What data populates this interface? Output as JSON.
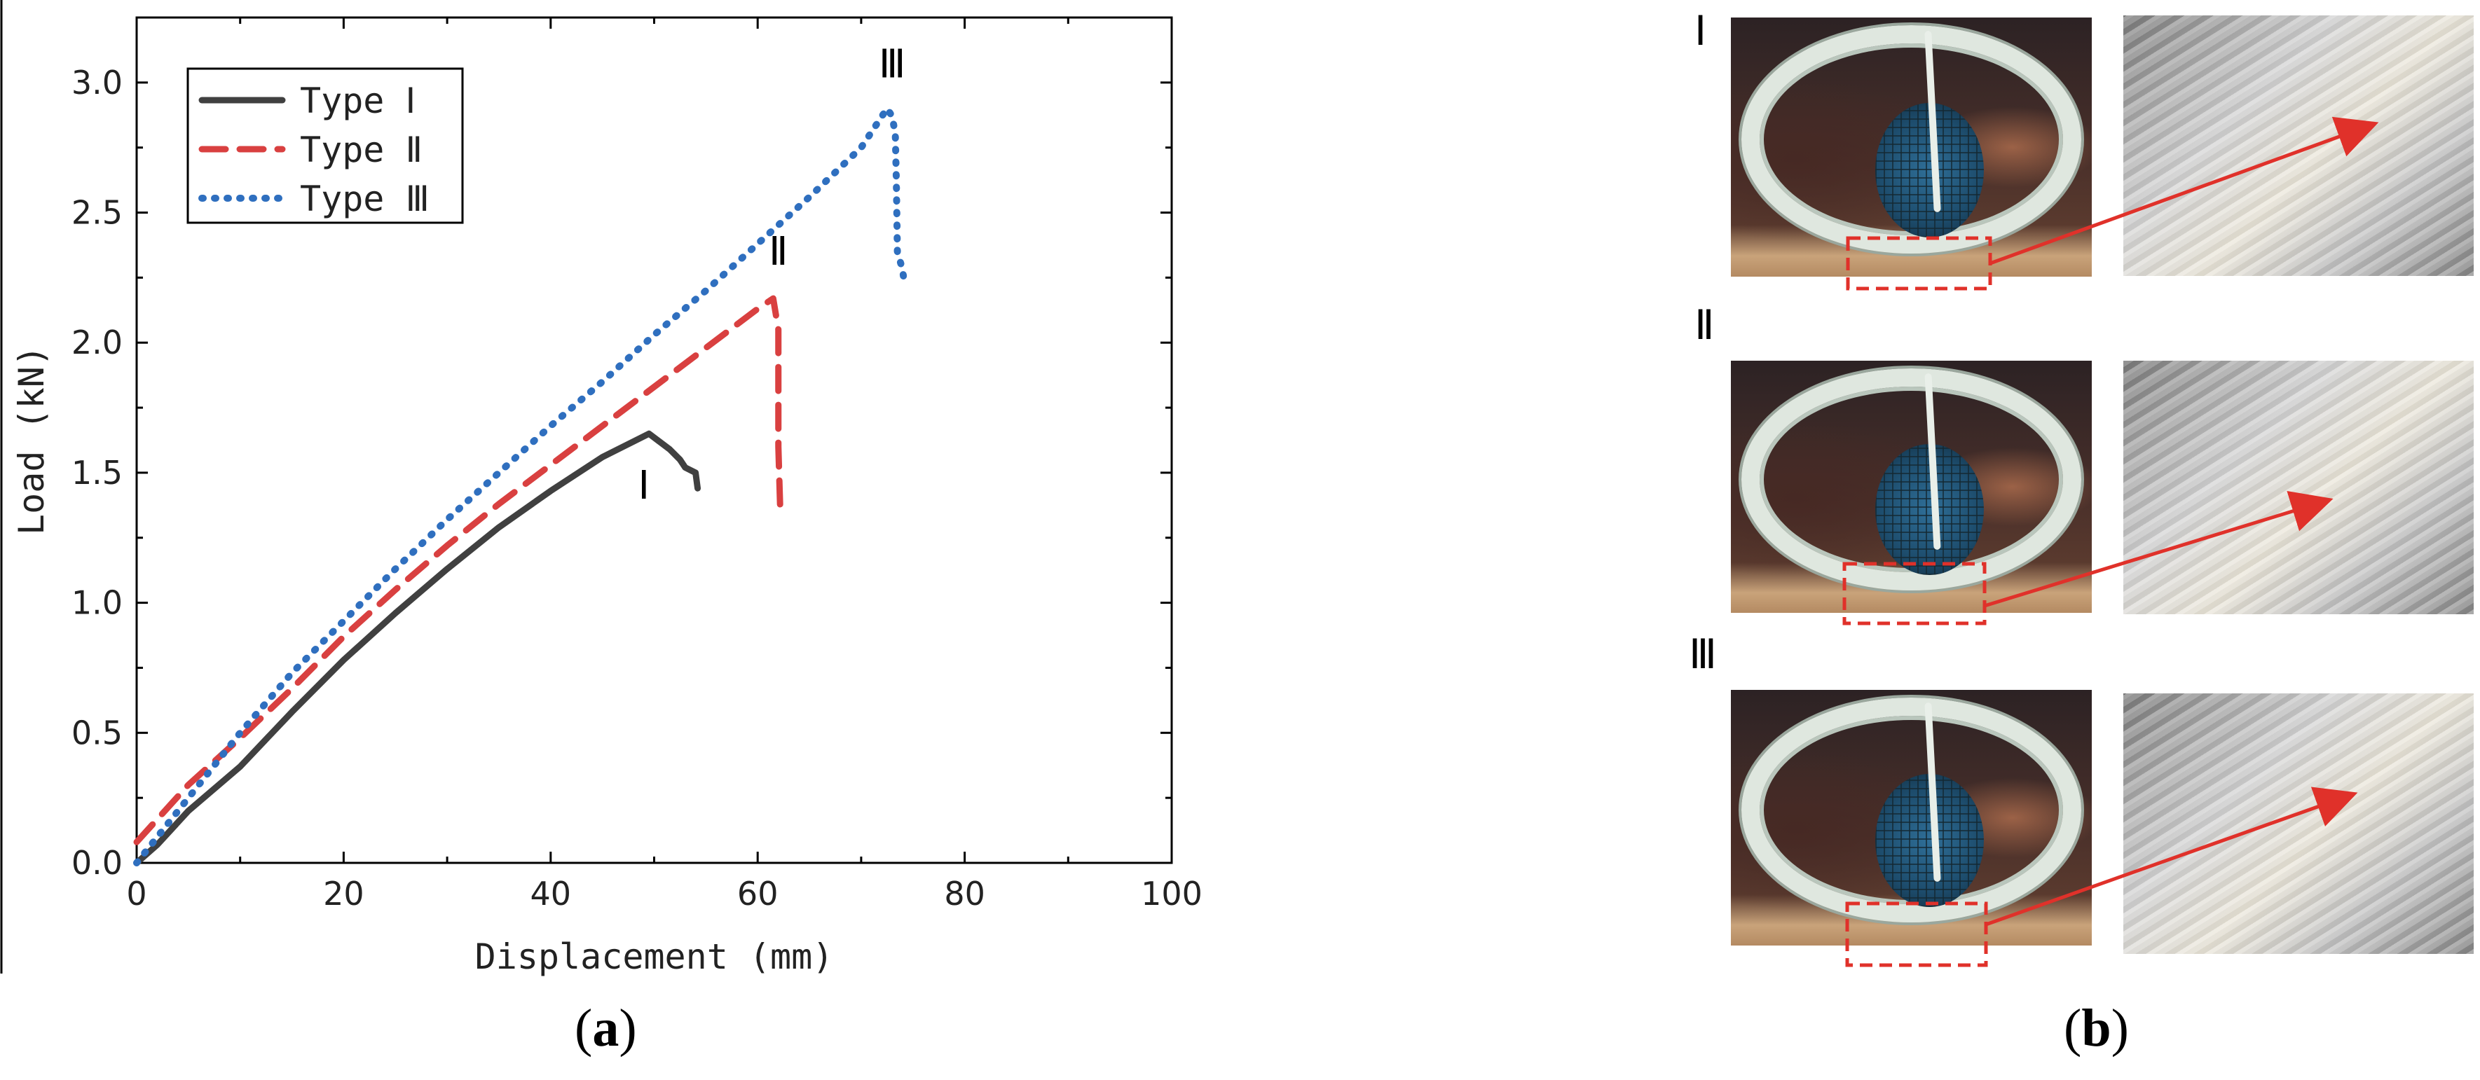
{
  "chart_data": {
    "type": "line",
    "title": "",
    "xlabel": "Displacement (mm)",
    "ylabel": "Load (kN)",
    "xlim": [
      0,
      100
    ],
    "ylim": [
      0,
      3.25
    ],
    "xticks": [
      0,
      20,
      40,
      60,
      80,
      100
    ],
    "yticks": [
      0.0,
      0.5,
      1.0,
      1.5,
      2.0,
      2.5,
      3.0
    ],
    "xtick_labels": [
      "0",
      "20",
      "40",
      "60",
      "80",
      "100"
    ],
    "ytick_labels": [
      "0.0",
      "0.5",
      "1.0",
      "1.5",
      "2.0",
      "2.5",
      "3.0"
    ],
    "grid": false,
    "legend_position": "top-left",
    "series": [
      {
        "name": "Type Ⅰ",
        "color": "#404040",
        "style": "solid",
        "x": [
          0,
          2,
          5,
          10,
          15,
          20,
          25,
          30,
          35,
          40,
          45,
          49.5,
          50.5,
          51.5,
          52.5,
          53,
          54,
          54.2
        ],
        "y": [
          0,
          0.07,
          0.2,
          0.37,
          0.58,
          0.78,
          0.96,
          1.13,
          1.29,
          1.43,
          1.56,
          1.65,
          1.62,
          1.59,
          1.55,
          1.52,
          1.5,
          1.44
        ]
      },
      {
        "name": "Type Ⅱ",
        "color": "#d94040",
        "style": "dashed",
        "x": [
          0,
          5,
          10,
          15,
          20,
          25,
          30,
          35,
          40,
          45,
          50,
          55,
          60,
          61.5,
          62,
          62,
          62.2
        ],
        "y": [
          0.08,
          0.3,
          0.48,
          0.67,
          0.87,
          1.05,
          1.22,
          1.38,
          1.53,
          1.68,
          1.83,
          1.98,
          2.13,
          2.17,
          2.05,
          1.6,
          1.33
        ]
      },
      {
        "name": "Type Ⅲ",
        "color": "#2f6fbf",
        "style": "dotted",
        "x": [
          0,
          5,
          10,
          15,
          20,
          25,
          30,
          35,
          40,
          45,
          50,
          55,
          60,
          65,
          70,
          72.5,
          73,
          73.3,
          73.4,
          73.5,
          74,
          74.2
        ],
        "y": [
          0,
          0.25,
          0.5,
          0.73,
          0.93,
          1.13,
          1.32,
          1.5,
          1.68,
          1.85,
          2.03,
          2.2,
          2.38,
          2.56,
          2.75,
          2.9,
          2.87,
          2.8,
          2.62,
          2.35,
          2.28,
          2.22
        ]
      }
    ],
    "annotations": [
      {
        "text": "Ⅰ",
        "x": 49,
        "y": 1.4
      },
      {
        "text": "Ⅱ",
        "x": 62,
        "y": 2.3
      },
      {
        "text": "Ⅲ",
        "x": 73,
        "y": 3.02
      }
    ]
  },
  "panels": {
    "a_label": "a",
    "b_label": "b"
  },
  "photo_rows": [
    {
      "label": "Ⅰ"
    },
    {
      "label": "Ⅱ"
    },
    {
      "label": "Ⅲ"
    }
  ],
  "colors": {
    "highlight": "#e0312a",
    "axis": "#000000"
  }
}
